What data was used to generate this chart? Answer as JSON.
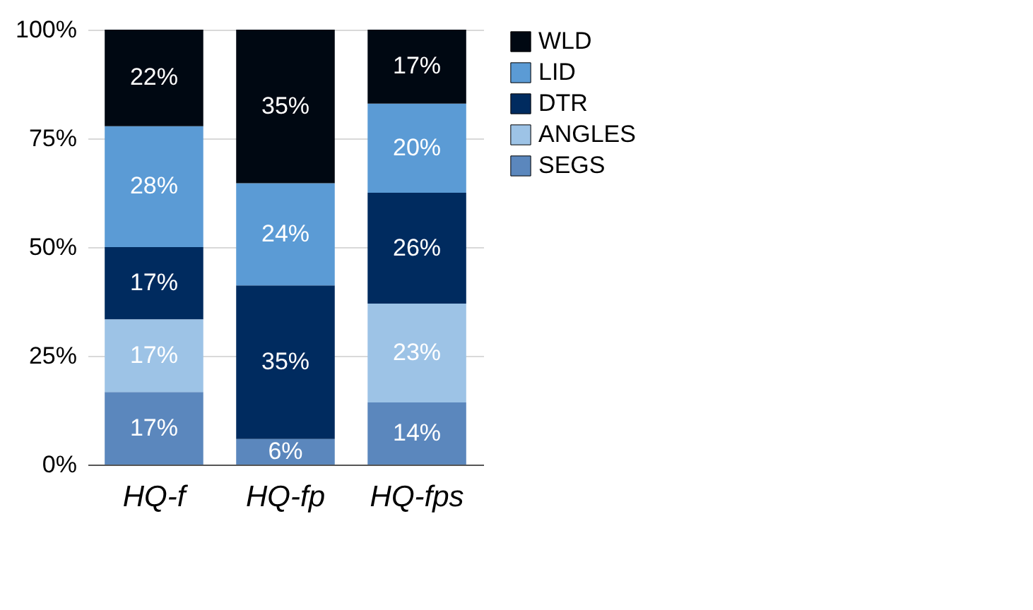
{
  "chart_data": {
    "type": "bar",
    "stacked": true,
    "categories": [
      "HQ-f",
      "HQ-fp",
      "HQ-fps"
    ],
    "series": [
      {
        "name": "SEGS",
        "color": "#5b87bd",
        "values": [
          16.7,
          5.9,
          14.3
        ],
        "value_labels": [
          "17%",
          "6%",
          "14%"
        ]
      },
      {
        "name": "ANGLES",
        "color": "#9dc3e6",
        "values": [
          16.7,
          0,
          22.7
        ],
        "value_labels": [
          "17%",
          null,
          "23%"
        ]
      },
      {
        "name": "DTR",
        "color": "#002b5f",
        "values": [
          16.6,
          35.3,
          25.5
        ],
        "value_labels": [
          "17%",
          "35%",
          "26%"
        ]
      },
      {
        "name": "LID",
        "color": "#5b9bd5",
        "values": [
          27.8,
          23.5,
          20.5
        ],
        "value_labels": [
          "28%",
          "24%",
          "20%"
        ]
      },
      {
        "name": "WLD",
        "color": "#000812",
        "values": [
          22.2,
          35.3,
          17.0
        ],
        "value_labels": [
          "22%",
          "35%",
          "17%"
        ]
      }
    ],
    "ylim": [
      0,
      100
    ],
    "yticks": [
      {
        "value": 0,
        "label": "0%"
      },
      {
        "value": 25,
        "label": "25%"
      },
      {
        "value": 50,
        "label": "50%"
      },
      {
        "value": 75,
        "label": "75%"
      },
      {
        "value": 100,
        "label": "100%"
      }
    ],
    "grid": "y",
    "legend": "right"
  }
}
